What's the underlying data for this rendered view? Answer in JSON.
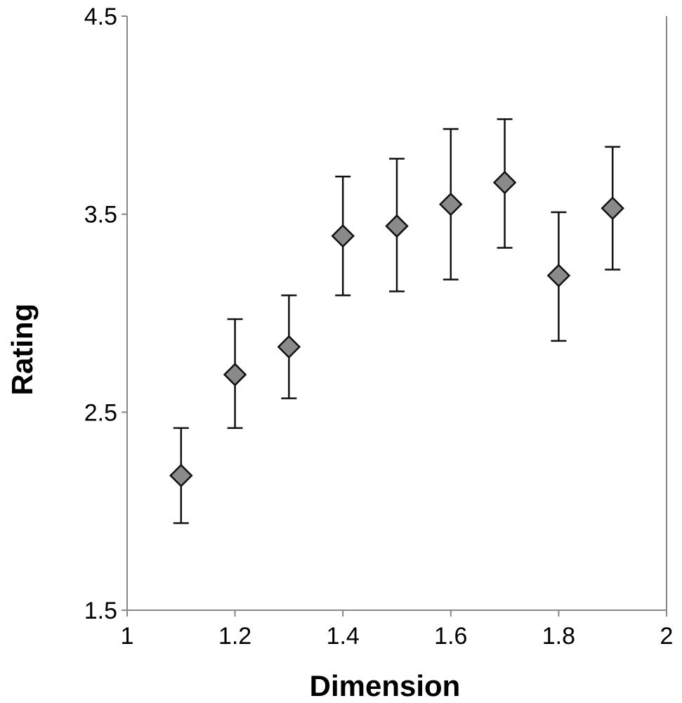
{
  "chart_data": {
    "type": "scatter",
    "title": "",
    "xlabel": "Dimension",
    "ylabel": "Rating",
    "xlim": [
      1,
      2
    ],
    "ylim": [
      1.5,
      4.5
    ],
    "xticks": [
      "1",
      "1.2",
      "1.4",
      "1.6",
      "1.8",
      "2"
    ],
    "yticks": [
      "1.5",
      "2.5",
      "3.5",
      "4.5"
    ],
    "xtick_values": [
      1,
      1.2,
      1.4,
      1.6,
      1.8,
      2
    ],
    "ytick_values": [
      1.5,
      2.5,
      3.5,
      4.5
    ],
    "grid": false,
    "marker": "diamond",
    "marker_color": "#8a8a8a",
    "series": [
      {
        "x": [
          1.1,
          1.2,
          1.3,
          1.4,
          1.5,
          1.6,
          1.7,
          1.8,
          1.9
        ],
        "y": [
          2.18,
          2.69,
          2.83,
          3.39,
          3.44,
          3.55,
          3.66,
          3.19,
          3.53
        ],
        "err_low": [
          1.94,
          2.42,
          2.57,
          3.09,
          3.11,
          3.17,
          3.33,
          2.86,
          3.22
        ],
        "err_high": [
          2.42,
          2.97,
          3.09,
          3.69,
          3.78,
          3.93,
          3.98,
          3.51,
          3.84
        ]
      }
    ]
  }
}
